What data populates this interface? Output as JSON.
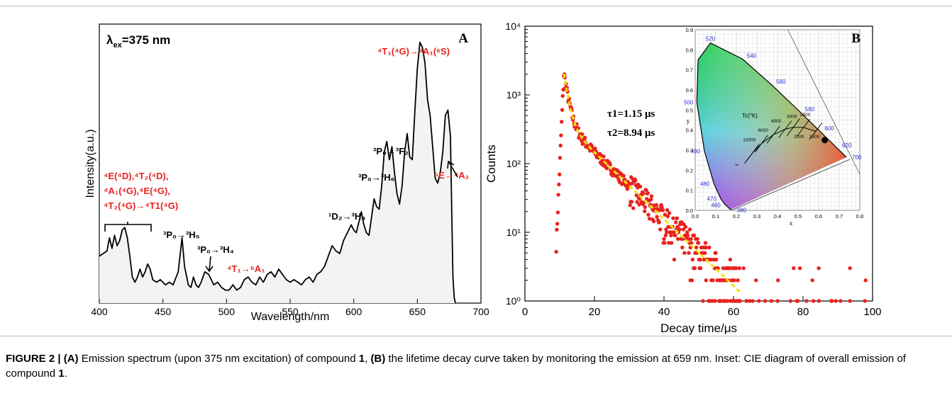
{
  "figure": {
    "caption": {
      "label": "FIGURE 2 |",
      "part_a_tag": "(A)",
      "text_1": " Emission spectrum (upon 375 nm excitation) of compound ",
      "compound": "1",
      "text_2": ", ",
      "part_b_tag": "(B)",
      "text_3": " the lifetime decay curve taken by monitoring the emission at 659 nm. Inset: CIE diagram of overall emission of compound ",
      "compound_2": "1",
      "text_4": "."
    }
  },
  "chart_data": [
    {
      "type": "line",
      "panel_label": "A",
      "excitation_label": "λex=375 nm",
      "excitation_prefix": "λ",
      "excitation_sub": "ex",
      "excitation_value": "=375 nm",
      "xlabel": "Wavelength/nm",
      "ylabel": "Intensity(a.u.)",
      "xlim": [
        400,
        700
      ],
      "xticks": [
        400,
        450,
        500,
        550,
        600,
        650,
        700
      ],
      "ylim": [
        0,
        1.07
      ],
      "y_ticks_shown": false,
      "fill_under": true,
      "x": [
        400,
        403,
        406,
        408,
        410,
        412,
        414,
        416,
        418,
        420,
        422,
        424,
        426,
        428,
        430,
        432,
        434,
        436,
        438,
        440,
        442,
        445,
        448,
        452,
        455,
        458,
        462,
        465,
        467,
        470,
        472,
        474,
        476,
        478,
        480,
        483,
        486,
        488,
        490,
        493,
        496,
        499,
        502,
        505,
        508,
        511,
        514,
        517,
        520,
        523,
        526,
        529,
        532,
        535,
        538,
        541,
        544,
        547,
        550,
        553,
        556,
        559,
        562,
        565,
        568,
        571,
        574,
        577,
        580,
        583,
        586,
        589,
        592,
        595,
        598,
        600,
        602,
        604,
        606,
        608,
        610,
        612,
        614,
        616,
        618,
        620,
        622,
        624,
        626,
        628,
        630,
        632,
        634,
        636,
        638,
        640,
        642,
        644,
        646,
        648,
        650,
        652,
        654,
        656,
        658,
        660,
        662,
        664,
        666,
        668,
        670,
        672,
        674,
        676,
        677,
        678,
        679,
        680
      ],
      "y": [
        0.18,
        0.19,
        0.2,
        0.25,
        0.21,
        0.26,
        0.22,
        0.24,
        0.28,
        0.29,
        0.25,
        0.18,
        0.1,
        0.08,
        0.1,
        0.13,
        0.1,
        0.12,
        0.15,
        0.13,
        0.09,
        0.08,
        0.09,
        0.07,
        0.08,
        0.07,
        0.12,
        0.25,
        0.14,
        0.07,
        0.06,
        0.1,
        0.07,
        0.06,
        0.08,
        0.12,
        0.11,
        0.09,
        0.07,
        0.08,
        0.06,
        0.05,
        0.05,
        0.07,
        0.05,
        0.06,
        0.09,
        0.1,
        0.08,
        0.07,
        0.1,
        0.08,
        0.11,
        0.12,
        0.1,
        0.13,
        0.11,
        0.09,
        0.08,
        0.09,
        0.08,
        0.07,
        0.09,
        0.1,
        0.08,
        0.11,
        0.12,
        0.14,
        0.18,
        0.22,
        0.2,
        0.19,
        0.24,
        0.27,
        0.3,
        0.28,
        0.27,
        0.31,
        0.35,
        0.3,
        0.27,
        0.26,
        0.33,
        0.4,
        0.37,
        0.36,
        0.45,
        0.58,
        0.62,
        0.55,
        0.6,
        0.5,
        0.42,
        0.38,
        0.45,
        0.58,
        0.65,
        0.56,
        0.55,
        0.73,
        0.9,
        1.0,
        0.98,
        0.92,
        0.78,
        0.72,
        0.6,
        0.48,
        0.46,
        0.5,
        0.58,
        0.72,
        0.74,
        0.64,
        0.35,
        0.1,
        0.02,
        0.0
      ],
      "annotations_black": [
        "³P₀→³H₅",
        "³P₀→³H₄",
        "¹D₂→³H₄",
        "³P₀→³H₆",
        "³P₀→³F₂"
      ],
      "annotations_red": [
        "⁴E(⁴D),⁴T₂(⁴D),",
        "⁴A₁(⁴G),⁴E(⁴G),",
        "⁴T₂(⁴G)→⁴T1(⁴G)",
        "⁴T₁→⁶A₁",
        "⁴T₁(⁴G)→⁶A₁(⁶S)",
        "⁵E→⁴A₂"
      ],
      "colors": {
        "annotation_red": "#e8231f",
        "line": "#000000",
        "fill": "#f3f3f3"
      }
    },
    {
      "type": "scatter",
      "panel_label": "B",
      "xlabel": "Decay time/μs",
      "ylabel": "Counts",
      "y_scale": "log",
      "xlim": [
        0,
        100
      ],
      "xticks": [
        0,
        20,
        40,
        60,
        80,
        100
      ],
      "ylim": [
        1,
        10000
      ],
      "yticks": [
        "10⁰",
        "10¹",
        "10²",
        "10³",
        "10⁴"
      ],
      "annotation_tau1": "τ1=1.15  μs",
      "annotation_tau2": "τ2=8.94  μs",
      "series": [
        {
          "role": "measured",
          "color": "#e8231f",
          "marker": "dot"
        },
        {
          "role": "fit",
          "color": "#f2e600",
          "style": "dashed"
        }
      ],
      "tail_points_at_detection_floor": [
        [
          54.7,
          1
        ],
        [
          56.5,
          1
        ],
        [
          58.3,
          1
        ],
        [
          60.1,
          1
        ],
        [
          61.9,
          1
        ],
        [
          63.7,
          1
        ],
        [
          65.5,
          1
        ],
        [
          67.3,
          1
        ],
        [
          69.1,
          1
        ],
        [
          70.9,
          1
        ],
        [
          72.7,
          1
        ],
        [
          76.4,
          1
        ],
        [
          78.5,
          1
        ],
        [
          81,
          1
        ],
        [
          83,
          1
        ],
        [
          84.6,
          1
        ],
        [
          88.3,
          1
        ],
        [
          89.4,
          1
        ],
        [
          90.8,
          1
        ],
        [
          93.5,
          1
        ],
        [
          97.8,
          1
        ]
      ],
      "colors": {
        "data": "#e8231f",
        "fit": "#f2e600"
      }
    },
    {
      "type": "scatter",
      "role": "inset CIE 1931 chromaticity diagram",
      "xlabel": "x",
      "ylabel": "y",
      "xlim": [
        0.0,
        0.8
      ],
      "ylim": [
        0.0,
        0.9
      ],
      "xticks": [
        "0.0",
        "0.1",
        "0.2",
        "0.3",
        "0.4",
        "0.5",
        "0.6",
        "0.7",
        "0.8"
      ],
      "yticks": [
        "0.0",
        "0.1",
        "0.2",
        "0.3",
        "0.4",
        "0.5",
        "0.6",
        "0.7",
        "0.8",
        "0.9"
      ],
      "grid": true,
      "locus_x": [
        0.175,
        0.171,
        0.164,
        0.144,
        0.124,
        0.091,
        0.045,
        0.008,
        0.014,
        0.074,
        0.23,
        0.373,
        0.513,
        0.608,
        0.693,
        0.735
      ],
      "locus_y": [
        0.005,
        0.005,
        0.011,
        0.03,
        0.058,
        0.133,
        0.295,
        0.538,
        0.75,
        0.834,
        0.754,
        0.624,
        0.487,
        0.392,
        0.307,
        0.265
      ],
      "wavelength_labels": [
        "380",
        "460",
        "470",
        "480",
        "490",
        "500",
        "520",
        "540",
        "560",
        "580",
        "600",
        "620",
        "700"
      ],
      "planckian_label": "Tc(°K)",
      "cct_labels": [
        "10000",
        "6000",
        "4000",
        "3000",
        "2500",
        "2000",
        "1500",
        "∞"
      ],
      "cct_points": [
        {
          "x": 0.28,
          "y": 0.288
        },
        {
          "x": 0.322,
          "y": 0.332
        },
        {
          "x": 0.38,
          "y": 0.377
        },
        {
          "x": 0.437,
          "y": 0.404
        },
        {
          "x": 0.477,
          "y": 0.414
        },
        {
          "x": 0.527,
          "y": 0.413
        },
        {
          "x": 0.586,
          "y": 0.394
        }
      ],
      "emission_point": {
        "x": 0.63,
        "y": 0.35
      },
      "colors": {
        "wavelength_label": "#2a2ad4",
        "point": "#000000"
      }
    }
  ]
}
